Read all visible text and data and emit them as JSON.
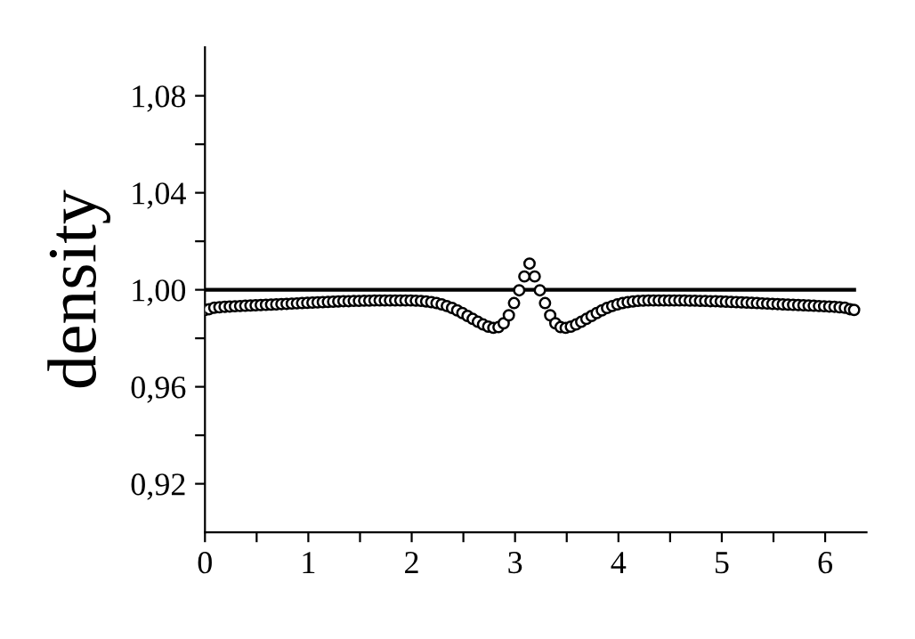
{
  "chart_data": {
    "type": "scatter",
    "ylabel": "density",
    "xlim": [
      0,
      6.4
    ],
    "ylim": [
      0.9,
      1.1
    ],
    "xticks": [
      0,
      {
        "value": 0.5,
        "label": null
      },
      1,
      {
        "value": 1.5,
        "label": null
      },
      2,
      {
        "value": 2.5,
        "label": null
      },
      3,
      {
        "value": 3.5,
        "label": null
      },
      4,
      {
        "value": 4.5,
        "label": null
      },
      5,
      {
        "value": 5.5,
        "label": null
      },
      6
    ],
    "yticks": [
      {
        "value": 0.92,
        "label": "0,92"
      },
      {
        "value": 0.94,
        "label": null
      },
      {
        "value": 0.96,
        "label": "0,96"
      },
      {
        "value": 0.98,
        "label": null
      },
      {
        "value": 1.0,
        "label": "1,00"
      },
      {
        "value": 1.02,
        "label": null
      },
      {
        "value": 1.04,
        "label": "1,04"
      },
      {
        "value": 1.06,
        "label": null
      },
      {
        "value": 1.08,
        "label": "1,08"
      }
    ],
    "grid": false,
    "legend": false,
    "series": [
      {
        "type": "line",
        "color": "#000000",
        "marker": "none",
        "line_style": "solid",
        "x": [
          0,
          6.28
        ],
        "values": [
          1.0,
          1.0
        ]
      },
      {
        "color": "#000000",
        "marker": "circle",
        "x": [
          0.0,
          0.04,
          0.09,
          0.14,
          0.19,
          0.24,
          0.29,
          0.34,
          0.39,
          0.44,
          0.49,
          0.54,
          0.59,
          0.64,
          0.69,
          0.74,
          0.79,
          0.84,
          0.89,
          0.94,
          0.99,
          1.04,
          1.09,
          1.14,
          1.19,
          1.24,
          1.29,
          1.34,
          1.39,
          1.44,
          1.49,
          1.54,
          1.59,
          1.64,
          1.69,
          1.74,
          1.79,
          1.84,
          1.89,
          1.94,
          1.99,
          2.04,
          2.09,
          2.14,
          2.19,
          2.24,
          2.29,
          2.34,
          2.39,
          2.44,
          2.49,
          2.54,
          2.59,
          2.64,
          2.69,
          2.74,
          2.79,
          2.84,
          2.89,
          2.94,
          2.99,
          3.04,
          3.09,
          3.14,
          3.19,
          3.24,
          3.29,
          3.34,
          3.39,
          3.44,
          3.49,
          3.54,
          3.59,
          3.64,
          3.69,
          3.74,
          3.79,
          3.84,
          3.89,
          3.94,
          3.99,
          4.04,
          4.09,
          4.14,
          4.19,
          4.24,
          4.29,
          4.34,
          4.39,
          4.44,
          4.49,
          4.54,
          4.59,
          4.64,
          4.69,
          4.74,
          4.79,
          4.84,
          4.89,
          4.94,
          4.99,
          5.04,
          5.09,
          5.14,
          5.19,
          5.24,
          5.29,
          5.34,
          5.39,
          5.44,
          5.49,
          5.54,
          5.59,
          5.64,
          5.69,
          5.74,
          5.79,
          5.84,
          5.89,
          5.94,
          5.99,
          6.04,
          6.09,
          6.14,
          6.19,
          6.24,
          6.28
        ],
        "values": [
          0.9917,
          0.992,
          0.9926,
          0.9928,
          0.993,
          0.9931,
          0.9932,
          0.9933,
          0.9934,
          0.9935,
          0.9936,
          0.9937,
          0.9938,
          0.9939,
          0.994,
          0.9941,
          0.9942,
          0.9943,
          0.9944,
          0.9945,
          0.9946,
          0.9947,
          0.9948,
          0.9949,
          0.995,
          0.9951,
          0.9952,
          0.9953,
          0.9953,
          0.9954,
          0.9954,
          0.9955,
          0.9955,
          0.9956,
          0.9956,
          0.9956,
          0.9956,
          0.9956,
          0.9956,
          0.9956,
          0.9956,
          0.9955,
          0.9954,
          0.9952,
          0.9949,
          0.9945,
          0.994,
          0.9933,
          0.9925,
          0.9915,
          0.9904,
          0.9892,
          0.988,
          0.9868,
          0.9857,
          0.9848,
          0.9843,
          0.9846,
          0.9862,
          0.9895,
          0.9945,
          0.9998,
          1.0055,
          1.0108,
          1.0055,
          0.9998,
          0.9945,
          0.9895,
          0.9862,
          0.9846,
          0.9843,
          0.9848,
          0.9857,
          0.9868,
          0.988,
          0.9892,
          0.9904,
          0.9915,
          0.9925,
          0.9933,
          0.994,
          0.9945,
          0.9949,
          0.9952,
          0.9954,
          0.9955,
          0.9956,
          0.9956,
          0.9956,
          0.9956,
          0.9956,
          0.9956,
          0.9956,
          0.9956,
          0.9955,
          0.9955,
          0.9954,
          0.9954,
          0.9953,
          0.9953,
          0.9952,
          0.9951,
          0.995,
          0.9949,
          0.9948,
          0.9947,
          0.9946,
          0.9945,
          0.9944,
          0.9943,
          0.9942,
          0.9941,
          0.994,
          0.9939,
          0.9938,
          0.9937,
          0.9936,
          0.9935,
          0.9934,
          0.9933,
          0.9932,
          0.9931,
          0.993,
          0.9928,
          0.9926,
          0.992,
          0.9917
        ]
      }
    ]
  }
}
